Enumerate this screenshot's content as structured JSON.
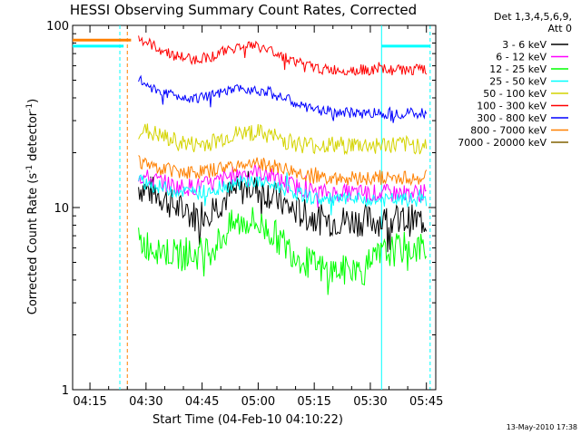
{
  "chart_data": {
    "type": "line",
    "title": "HESSI Observing Summary Count Rates, Corrected",
    "xlabel": "Start Time (04-Feb-10 04:10:22)",
    "ylabel": "Corrected Count Rate (s⁻¹ detector⁻¹)",
    "yscale": "log",
    "ylim": [
      1,
      100
    ],
    "xlim": [
      "04:10:22",
      "05:47:30"
    ],
    "x_ticks": [
      "04:15",
      "04:30",
      "04:45",
      "05:00",
      "05:15",
      "05:30",
      "05:45"
    ],
    "y_ticks": [
      "1",
      "10",
      "100"
    ],
    "legend_header": [
      "Det 1,3,4,5,6,9,",
      "Att 0"
    ],
    "legend_position": "right",
    "footer_date": "13-May-2010 17:38",
    "series": [
      {
        "name": "3 - 6 keV",
        "color": "#000000",
        "x": [
          "04:28",
          "04:33",
          "04:38",
          "04:43",
          "04:48",
          "04:53",
          "04:58",
          "05:03",
          "05:08",
          "05:13",
          "05:18",
          "05:23",
          "05:28",
          "05:33",
          "05:38",
          "05:43",
          "05:45"
        ],
        "y": [
          13,
          12,
          10,
          9,
          10,
          12,
          13,
          12,
          10,
          9,
          8.5,
          8.5,
          8.5,
          8.5,
          8.5,
          8.5,
          8.5
        ]
      },
      {
        "name": "6 - 12 keV",
        "color": "#ff00ff",
        "x": [
          "04:28",
          "04:33",
          "04:38",
          "04:43",
          "04:48",
          "04:53",
          "04:58",
          "05:03",
          "05:08",
          "05:13",
          "05:18",
          "05:23",
          "05:28",
          "05:33",
          "05:38",
          "05:43",
          "05:45"
        ],
        "y": [
          15,
          14,
          13,
          13,
          13.5,
          15,
          16,
          15,
          13.5,
          12.5,
          12,
          12,
          12,
          12,
          12,
          12,
          12
        ]
      },
      {
        "name": "12 - 25 keV",
        "color": "#00ff00",
        "x": [
          "04:28",
          "04:33",
          "04:38",
          "04:43",
          "04:48",
          "04:53",
          "04:58",
          "05:03",
          "05:08",
          "05:13",
          "05:18",
          "05:23",
          "05:28",
          "05:33",
          "05:38",
          "05:43",
          "05:45"
        ],
        "y": [
          6.5,
          6,
          5.5,
          5.5,
          6,
          8,
          8.5,
          7.5,
          6,
          5,
          4.5,
          4.5,
          4.5,
          5.5,
          6,
          6,
          6
        ]
      },
      {
        "name": "25 - 50 keV",
        "color": "#00ffff",
        "x": [
          "04:28",
          "04:33",
          "04:38",
          "04:43",
          "04:48",
          "04:53",
          "04:58",
          "05:03",
          "05:08",
          "05:13",
          "05:18",
          "05:23",
          "05:28",
          "05:33",
          "05:38",
          "05:43",
          "05:45"
        ],
        "y": [
          14,
          13,
          12.5,
          12,
          12.5,
          13.5,
          14,
          13.5,
          12.5,
          11.5,
          11,
          11,
          11,
          11,
          11,
          11,
          11
        ]
      },
      {
        "name": "50 - 100 keV",
        "color": "#d4d400",
        "x": [
          "04:28",
          "04:33",
          "04:38",
          "04:43",
          "04:48",
          "04:53",
          "04:58",
          "05:03",
          "05:08",
          "05:13",
          "05:18",
          "05:23",
          "05:28",
          "05:33",
          "05:38",
          "05:43",
          "05:45"
        ],
        "y": [
          27,
          25,
          23,
          22,
          23,
          25,
          26,
          25,
          23,
          22,
          22,
          22,
          22,
          22,
          22,
          22,
          22
        ]
      },
      {
        "name": "100 - 300 keV",
        "color": "#ff0000",
        "x": [
          "04:28",
          "04:33",
          "04:38",
          "04:43",
          "04:48",
          "04:53",
          "04:58",
          "05:03",
          "05:08",
          "05:13",
          "05:18",
          "05:23",
          "05:28",
          "05:33",
          "05:38",
          "05:43",
          "05:45"
        ],
        "y": [
          85,
          75,
          68,
          65,
          68,
          75,
          78,
          73,
          66,
          60,
          57,
          57,
          57,
          57,
          57,
          57,
          57
        ]
      },
      {
        "name": "300 - 800 keV",
        "color": "#0000ff",
        "x": [
          "04:28",
          "04:33",
          "04:38",
          "04:43",
          "04:48",
          "04:53",
          "04:58",
          "05:03",
          "05:08",
          "05:13",
          "05:18",
          "05:23",
          "05:28",
          "05:33",
          "05:38",
          "05:43",
          "05:45"
        ],
        "y": [
          50,
          44,
          41,
          40,
          41,
          44,
          45,
          43,
          39,
          35,
          34,
          33,
          33,
          33,
          33,
          33,
          33
        ]
      },
      {
        "name": "800 - 7000 keV",
        "color": "#ff8000",
        "x": [
          "04:28",
          "04:33",
          "04:38",
          "04:43",
          "04:48",
          "04:53",
          "04:58",
          "05:03",
          "05:08",
          "05:13",
          "05:18",
          "05:23",
          "05:28",
          "05:33",
          "05:38",
          "05:43",
          "05:45"
        ],
        "y": [
          18,
          16.5,
          16,
          15.5,
          16,
          17,
          17.5,
          17,
          16,
          15,
          14.5,
          14.5,
          14.5,
          14.5,
          14.5,
          14.5,
          14.5
        ]
      },
      {
        "name": "7000 - 20000 keV",
        "color": "#806000",
        "x": [],
        "y": []
      }
    ],
    "attenuator_segments": [
      {
        "color": "#ff8000",
        "x": [
          "04:10:22",
          "04:26"
        ],
        "y": 83
      },
      {
        "color": "#00ffff",
        "x": [
          "04:10:22",
          "04:24"
        ],
        "y": 77
      },
      {
        "color": "#00ffff",
        "x": [
          "05:33",
          "05:46"
        ],
        "y": 77
      }
    ],
    "vertical_markers": [
      {
        "x": "04:23",
        "color": "#00ffff",
        "style": "dashed"
      },
      {
        "x": "04:25",
        "color": "#ff8000",
        "style": "dashed"
      },
      {
        "x": "05:33",
        "color": "#00ffff",
        "style": "solid"
      },
      {
        "x": "05:46",
        "color": "#00ffff",
        "style": "dashed"
      }
    ]
  }
}
